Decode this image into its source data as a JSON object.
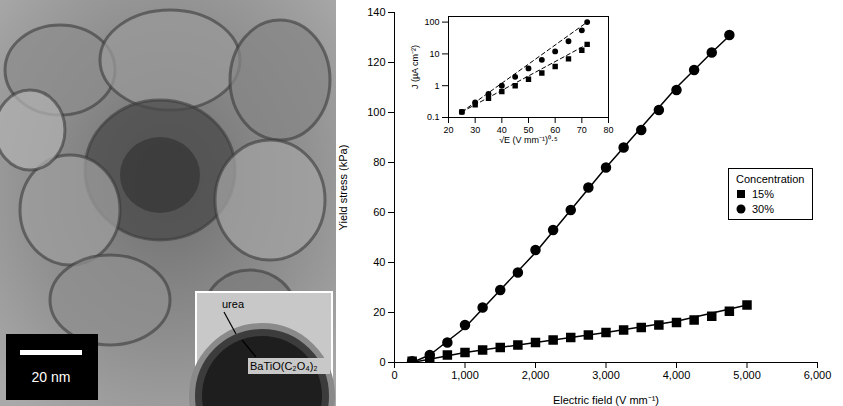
{
  "micrograph": {
    "scale_bar": "20 nm",
    "labels": [
      "urea",
      "BaTiO(C₂O₄)₂"
    ]
  },
  "chart_data": [
    {
      "type": "scatter",
      "x_label": "Electric field (V mm⁻¹)",
      "y_label": "Yield stress (kPa)",
      "xlim": [
        0,
        6000
      ],
      "xticks": [
        0,
        {
          "value": 1000,
          "label": "1,000"
        },
        {
          "value": 2000,
          "label": "2,000"
        },
        {
          "value": 3000,
          "label": "3,000"
        },
        {
          "value": 4000,
          "label": "4,000"
        },
        {
          "value": 5000,
          "label": "5,000"
        },
        {
          "value": 6000,
          "label": "6,000"
        }
      ],
      "ylim": [
        0,
        140
      ],
      "yticks": [
        0,
        20,
        40,
        60,
        80,
        100,
        120,
        140
      ],
      "legend": "right",
      "legend_title": "Concentration",
      "series": [
        {
          "name": "15%",
          "color": "#000000",
          "marker": "square",
          "line_style": "solid",
          "x": [
            250,
            500,
            750,
            1000,
            1250,
            1500,
            1750,
            2000,
            2250,
            2500,
            2750,
            3000,
            3250,
            3500,
            3750,
            4000,
            4250,
            4500,
            4750,
            5000
          ],
          "values": [
            0.5,
            2,
            3,
            4,
            5,
            6,
            7,
            8,
            9,
            10,
            11,
            12,
            13,
            14,
            15,
            16,
            17,
            18.5,
            20.5,
            23
          ],
          "fit": {
            "x": [
              250,
              1000,
              2000,
              3000,
              4000,
              5000
            ],
            "values": [
              0,
              4,
              8,
              12,
              16.5,
              23
            ]
          }
        },
        {
          "name": "30%",
          "color": "#000000",
          "marker": "circle",
          "line_style": "solid",
          "x": [
            250,
            500,
            750,
            1000,
            1250,
            1500,
            1750,
            2000,
            2250,
            2500,
            2750,
            3000,
            3250,
            3500,
            3750,
            4000,
            4250,
            4500,
            4750
          ],
          "values": [
            0.5,
            3,
            8,
            15,
            22,
            29,
            36,
            45,
            53,
            61,
            70,
            78,
            86,
            93,
            101,
            109,
            117,
            124,
            131
          ],
          "fit": {
            "x": [
              250,
              500,
              1000,
              1500,
              2000,
              2500,
              3000,
              3500,
              4000,
              4500,
              4800
            ],
            "values": [
              0,
              3,
              14,
              29,
              44,
              61,
              78,
              94,
              110,
              124,
              132
            ]
          }
        }
      ]
    },
    {
      "type": "scatter",
      "x_label": "√E (V mm⁻¹)⁰·⁵",
      "y_label": "J (µA cm⁻²)",
      "log": "y",
      "xlim": [
        20,
        80
      ],
      "xticks": [
        20,
        30,
        40,
        50,
        60,
        70,
        80
      ],
      "ylim": [
        0.1,
        150
      ],
      "yticks": [
        0.1,
        1,
        10,
        100
      ],
      "series": [
        {
          "color": "#000000",
          "marker": "square",
          "line_style": "dashed",
          "x": [
            25,
            30,
            35,
            40,
            45,
            50,
            55,
            60,
            65,
            70,
            72
          ],
          "values": [
            0.15,
            0.25,
            0.4,
            0.65,
            1.0,
            1.6,
            2.5,
            4,
            7,
            13,
            20
          ],
          "fit": {
            "x": [
              25,
              72
            ],
            "values": [
              0.15,
              20
            ]
          }
        },
        {
          "color": "#000000",
          "marker": "circle",
          "line_style": "dashed",
          "x": [
            25,
            30,
            35,
            40,
            45,
            50,
            55,
            60,
            65,
            70,
            72
          ],
          "values": [
            0.15,
            0.3,
            0.55,
            1.0,
            1.9,
            3.5,
            6.5,
            12,
            25,
            55,
            100
          ],
          "fit": {
            "x": [
              25,
              72
            ],
            "values": [
              0.15,
              100
            ]
          }
        }
      ]
    }
  ]
}
